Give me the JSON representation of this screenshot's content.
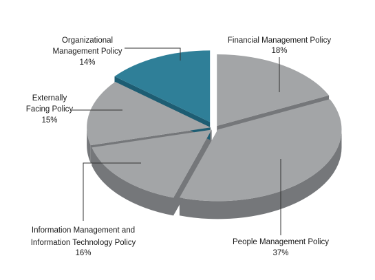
{
  "chart_data": {
    "type": "pie",
    "title": "",
    "slices": [
      {
        "name": "Financial Management Policy",
        "label_lines": [
          "Financial Management Policy"
        ],
        "pct_text": "18%",
        "value": 18,
        "color": "#a3a5a7",
        "highlight": false
      },
      {
        "name": "People Management Policy",
        "label_lines": [
          "People Management Policy"
        ],
        "pct_text": "37%",
        "value": 37,
        "color": "#a3a5a7",
        "highlight": false
      },
      {
        "name": "Information Management and Information Technology Policy",
        "label_lines": [
          "Information Management and",
          "Information Technology Policy"
        ],
        "pct_text": "16%",
        "value": 16,
        "color": "#a3a5a7",
        "highlight": false
      },
      {
        "name": "Externally Facing Policy",
        "label_lines": [
          "Externally",
          "Facing Policy"
        ],
        "pct_text": "15%",
        "value": 15,
        "color": "#a3a5a7",
        "highlight": false
      },
      {
        "name": "Organizational Management Policy",
        "label_lines": [
          "Organizational",
          "Management Policy"
        ],
        "pct_text": "14%",
        "value": 14,
        "color": "#2f7f98",
        "highlight": true
      }
    ],
    "side_color_gray": "#75777a",
    "side_color_teal": "#1d5d73"
  }
}
